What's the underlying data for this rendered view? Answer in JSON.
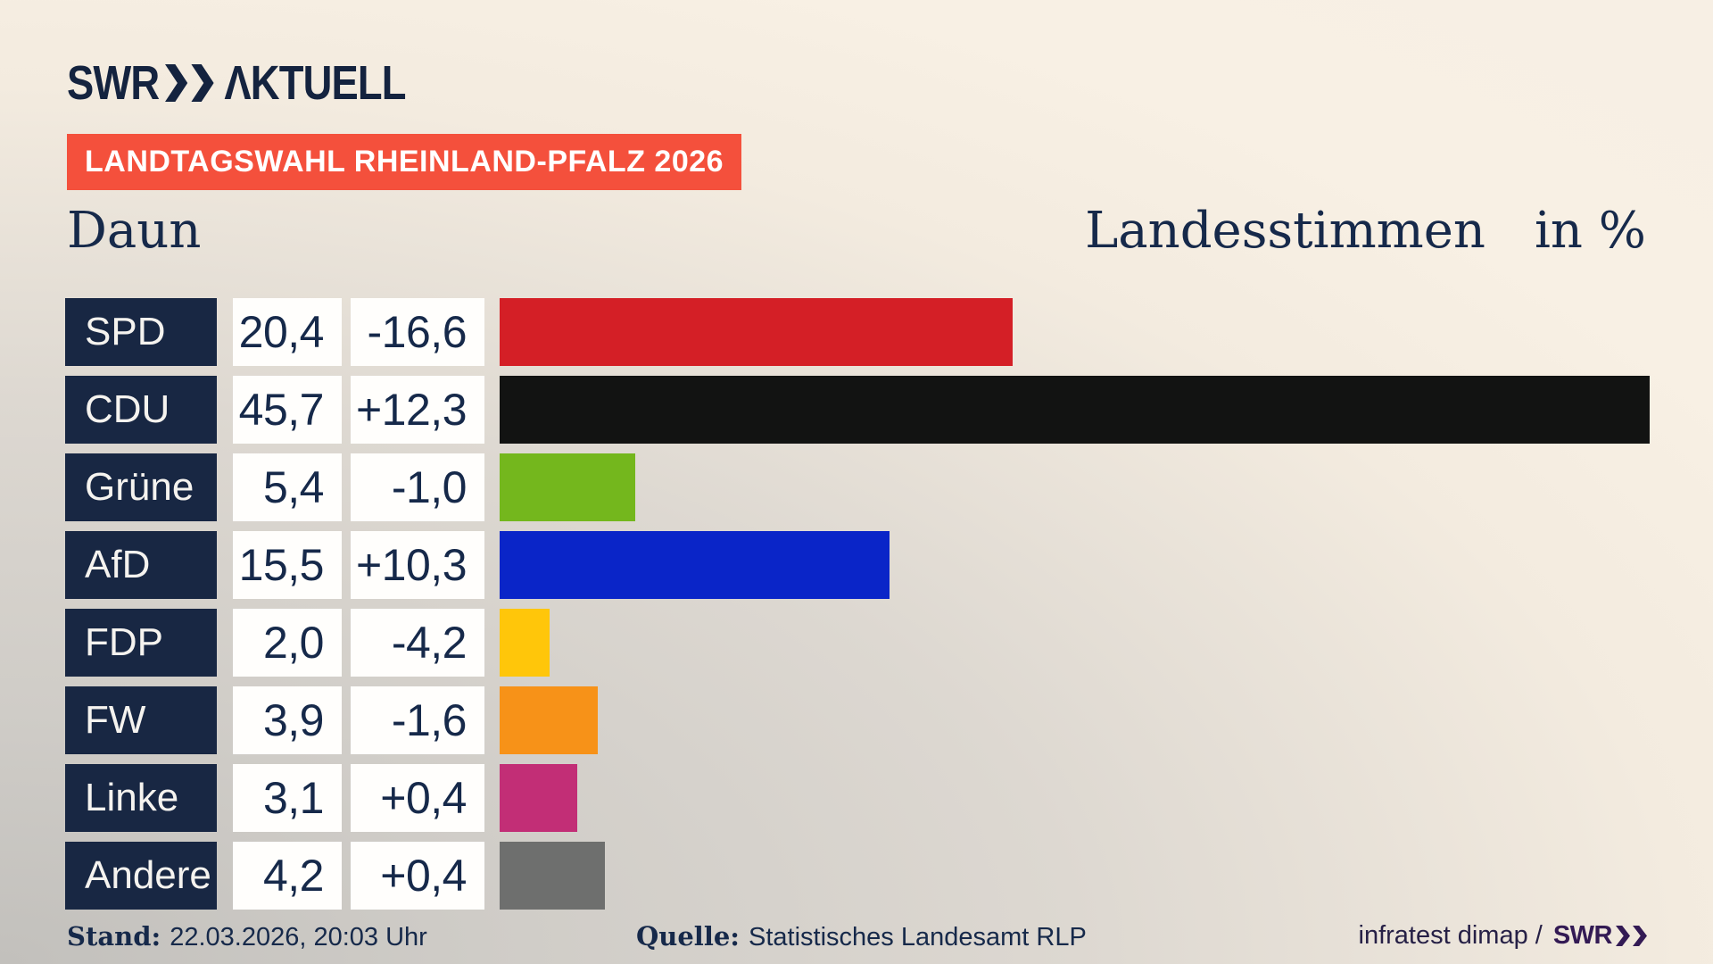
{
  "header": {
    "logo": {
      "brand": "SWR",
      "chevrons": "»",
      "wordmark": "ΛKTUELL"
    },
    "badge": "LANDTAGSWAHL RHEINLAND-PFALZ 2026"
  },
  "title": {
    "region": "Daun",
    "measure": "Landesstimmen",
    "unit": "in %"
  },
  "chart_data": {
    "type": "bar",
    "orientation": "horizontal",
    "title": "Landtagswahl Rheinland-Pfalz 2026 — Daun — Landesstimmen in %",
    "categories": [
      "SPD",
      "CDU",
      "Grüne",
      "AfD",
      "FDP",
      "FW",
      "Linke",
      "Andere"
    ],
    "values": [
      20.4,
      45.7,
      5.4,
      15.5,
      2.0,
      3.9,
      3.1,
      4.2
    ],
    "diffs": [
      -16.6,
      12.3,
      -1.0,
      10.3,
      -4.2,
      -1.6,
      0.4,
      0.4
    ],
    "value_labels": [
      "20,4",
      "45,7",
      "5,4",
      "15,5",
      "2,0",
      "3,9",
      "3,1",
      "4,2"
    ],
    "diff_labels": [
      "-16,6",
      "+12,3",
      "-1,0",
      "+10,3",
      "-4,2",
      "-1,6",
      "+0,4",
      "+0,4"
    ],
    "bar_colors": [
      "#d41f26",
      "#121312",
      "#74b71d",
      "#0a25c8",
      "#ffc60a",
      "#f79218",
      "#c22e76",
      "#6e6f6e"
    ],
    "xlim": [
      0,
      48
    ],
    "grid": false,
    "legend": false,
    "unit": "%"
  },
  "footer": {
    "stand_label": "Stand:",
    "stand_value": "22.03.2026, 20:03 Uhr",
    "quelle_label": "Quelle:",
    "quelle_value": "Statistisches Landesamt RLP",
    "credit": "infratest dimap /",
    "credit_brand": "SWR",
    "credit_chevrons": "»"
  },
  "colors": {
    "badge_bg": "#f4503c",
    "party_box_bg": "#182743",
    "text_navy": "#16294a",
    "logo_navy": "#14233f",
    "credit_brand_purple": "#331a54",
    "value_box_bg": "#fffefc"
  }
}
